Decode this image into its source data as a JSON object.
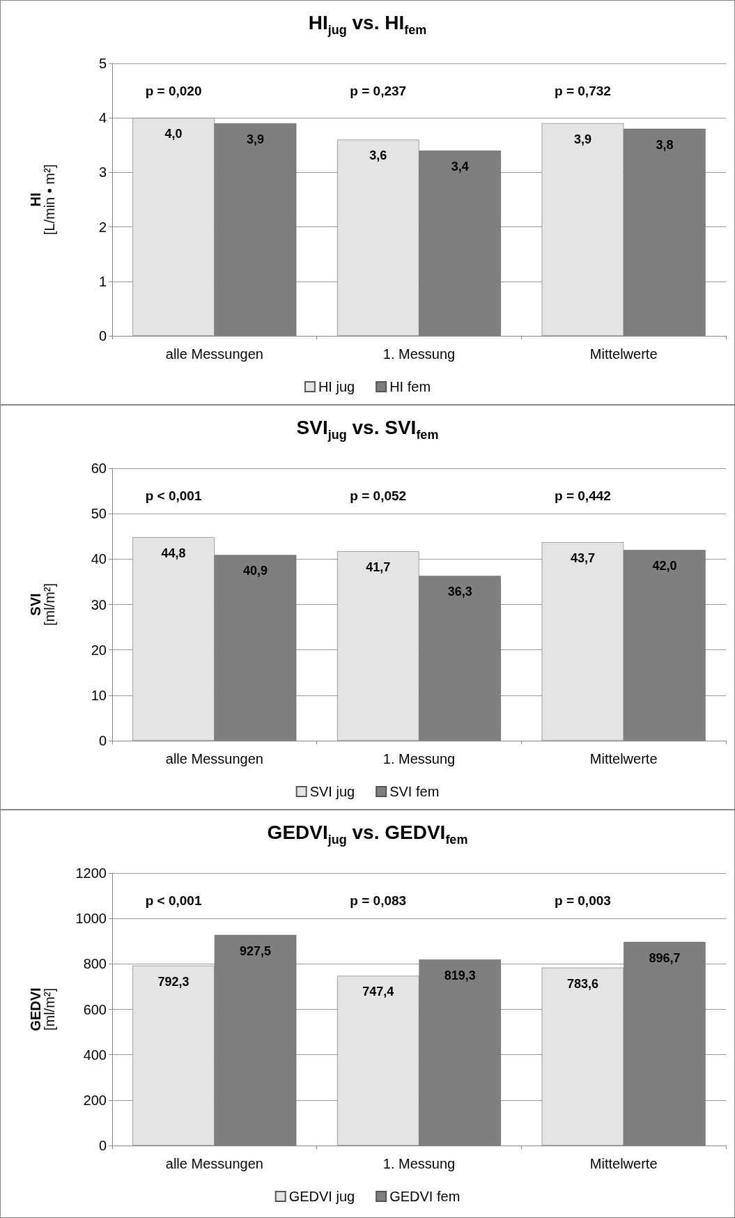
{
  "chart_data": [
    {
      "type": "bar",
      "title": "HI$_{jug}$ vs. HI$_{fem}$",
      "ylabel": "HI\n[L/min • m²]",
      "categories": [
        "alle Messungen",
        "1. Messung",
        "Mittelwerte"
      ],
      "series": [
        {
          "name": "HI jug",
          "color": "#e4e4e4",
          "values": [
            4.0,
            3.6,
            3.9
          ],
          "value_labels": [
            "4,0",
            "3,6",
            "3,9"
          ]
        },
        {
          "name": "HI fem",
          "color": "#7f7f7f",
          "values": [
            3.9,
            3.4,
            3.8
          ],
          "value_labels": [
            "3,9",
            "3,4",
            "3,8"
          ]
        }
      ],
      "ylim": [
        0,
        5
      ],
      "yticks": [
        0,
        1,
        2,
        3,
        4,
        5
      ],
      "grid": "y",
      "legend": "bottom",
      "annotations": [
        "p = 0,020",
        "p = 0,237",
        "p = 0,732"
      ]
    },
    {
      "type": "bar",
      "title": "SVI$_{jug}$ vs. SVI$_{fem}$",
      "ylabel": "SVI\n[ml/m²]",
      "categories": [
        "alle Messungen",
        "1. Messung",
        "Mittelwerte"
      ],
      "series": [
        {
          "name": "SVI jug",
          "color": "#e4e4e4",
          "values": [
            44.8,
            41.7,
            43.7
          ],
          "value_labels": [
            "44,8",
            "41,7",
            "43,7"
          ]
        },
        {
          "name": "SVI fem",
          "color": "#7f7f7f",
          "values": [
            40.9,
            36.3,
            42.0
          ],
          "value_labels": [
            "40,9",
            "36,3",
            "42,0"
          ]
        }
      ],
      "ylim": [
        0,
        60
      ],
      "yticks": [
        0,
        10,
        20,
        30,
        40,
        50,
        60
      ],
      "grid": "y",
      "legend": "bottom",
      "annotations": [
        "p < 0,001",
        "p = 0,052",
        "p = 0,442"
      ]
    },
    {
      "type": "bar",
      "title": "GEDVI$_{jug}$ vs. GEDVI$_{fem}$",
      "ylabel": "GEDVI\n[ml/m²]",
      "categories": [
        "alle Messungen",
        "1. Messung",
        "Mittelwerte"
      ],
      "series": [
        {
          "name": "GEDVI jug",
          "color": "#e4e4e4",
          "values": [
            792.3,
            747.4,
            783.6
          ],
          "value_labels": [
            "792,3",
            "747,4",
            "783,6"
          ]
        },
        {
          "name": "GEDVI fem",
          "color": "#7f7f7f",
          "values": [
            927.5,
            819.3,
            896.7
          ],
          "value_labels": [
            "927,5",
            "819,3",
            "896,7"
          ]
        }
      ],
      "ylim": [
        0,
        1200
      ],
      "yticks": [
        0,
        200,
        400,
        600,
        800,
        1000,
        1200
      ],
      "grid": "y",
      "legend": "bottom",
      "annotations": [
        "p < 0,001",
        "p = 0,083",
        "p = 0,003"
      ]
    }
  ]
}
